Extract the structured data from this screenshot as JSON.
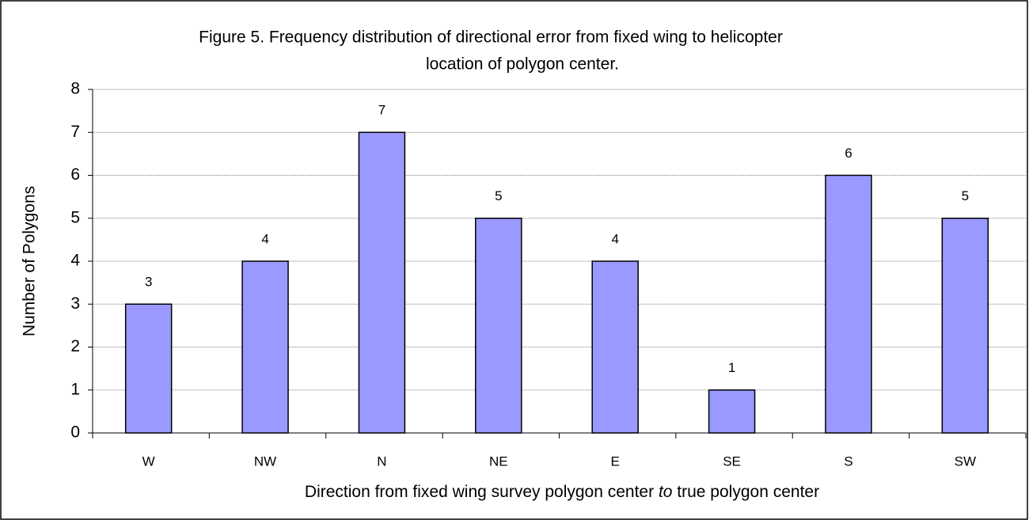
{
  "chart_data": {
    "type": "bar",
    "title": [
      "Figure 5.  Frequency distribution of directional error from fixed wing to helicopter",
      "location of polygon center."
    ],
    "y_label": "Number of Polygons",
    "x_label": [
      "Direction from fixed wing survey polygon center ",
      "to",
      " true polygon center"
    ],
    "categories": [
      "W",
      "NW",
      "N",
      "NE",
      "E",
      "SE",
      "S",
      "SW"
    ],
    "values": [
      3,
      4,
      7,
      5,
      4,
      1,
      6,
      5
    ],
    "color": "#9999ff",
    "ylim": [
      0,
      8
    ],
    "yticks": [
      0,
      1,
      2,
      3,
      4,
      5,
      6,
      7,
      8
    ],
    "grid": true
  }
}
